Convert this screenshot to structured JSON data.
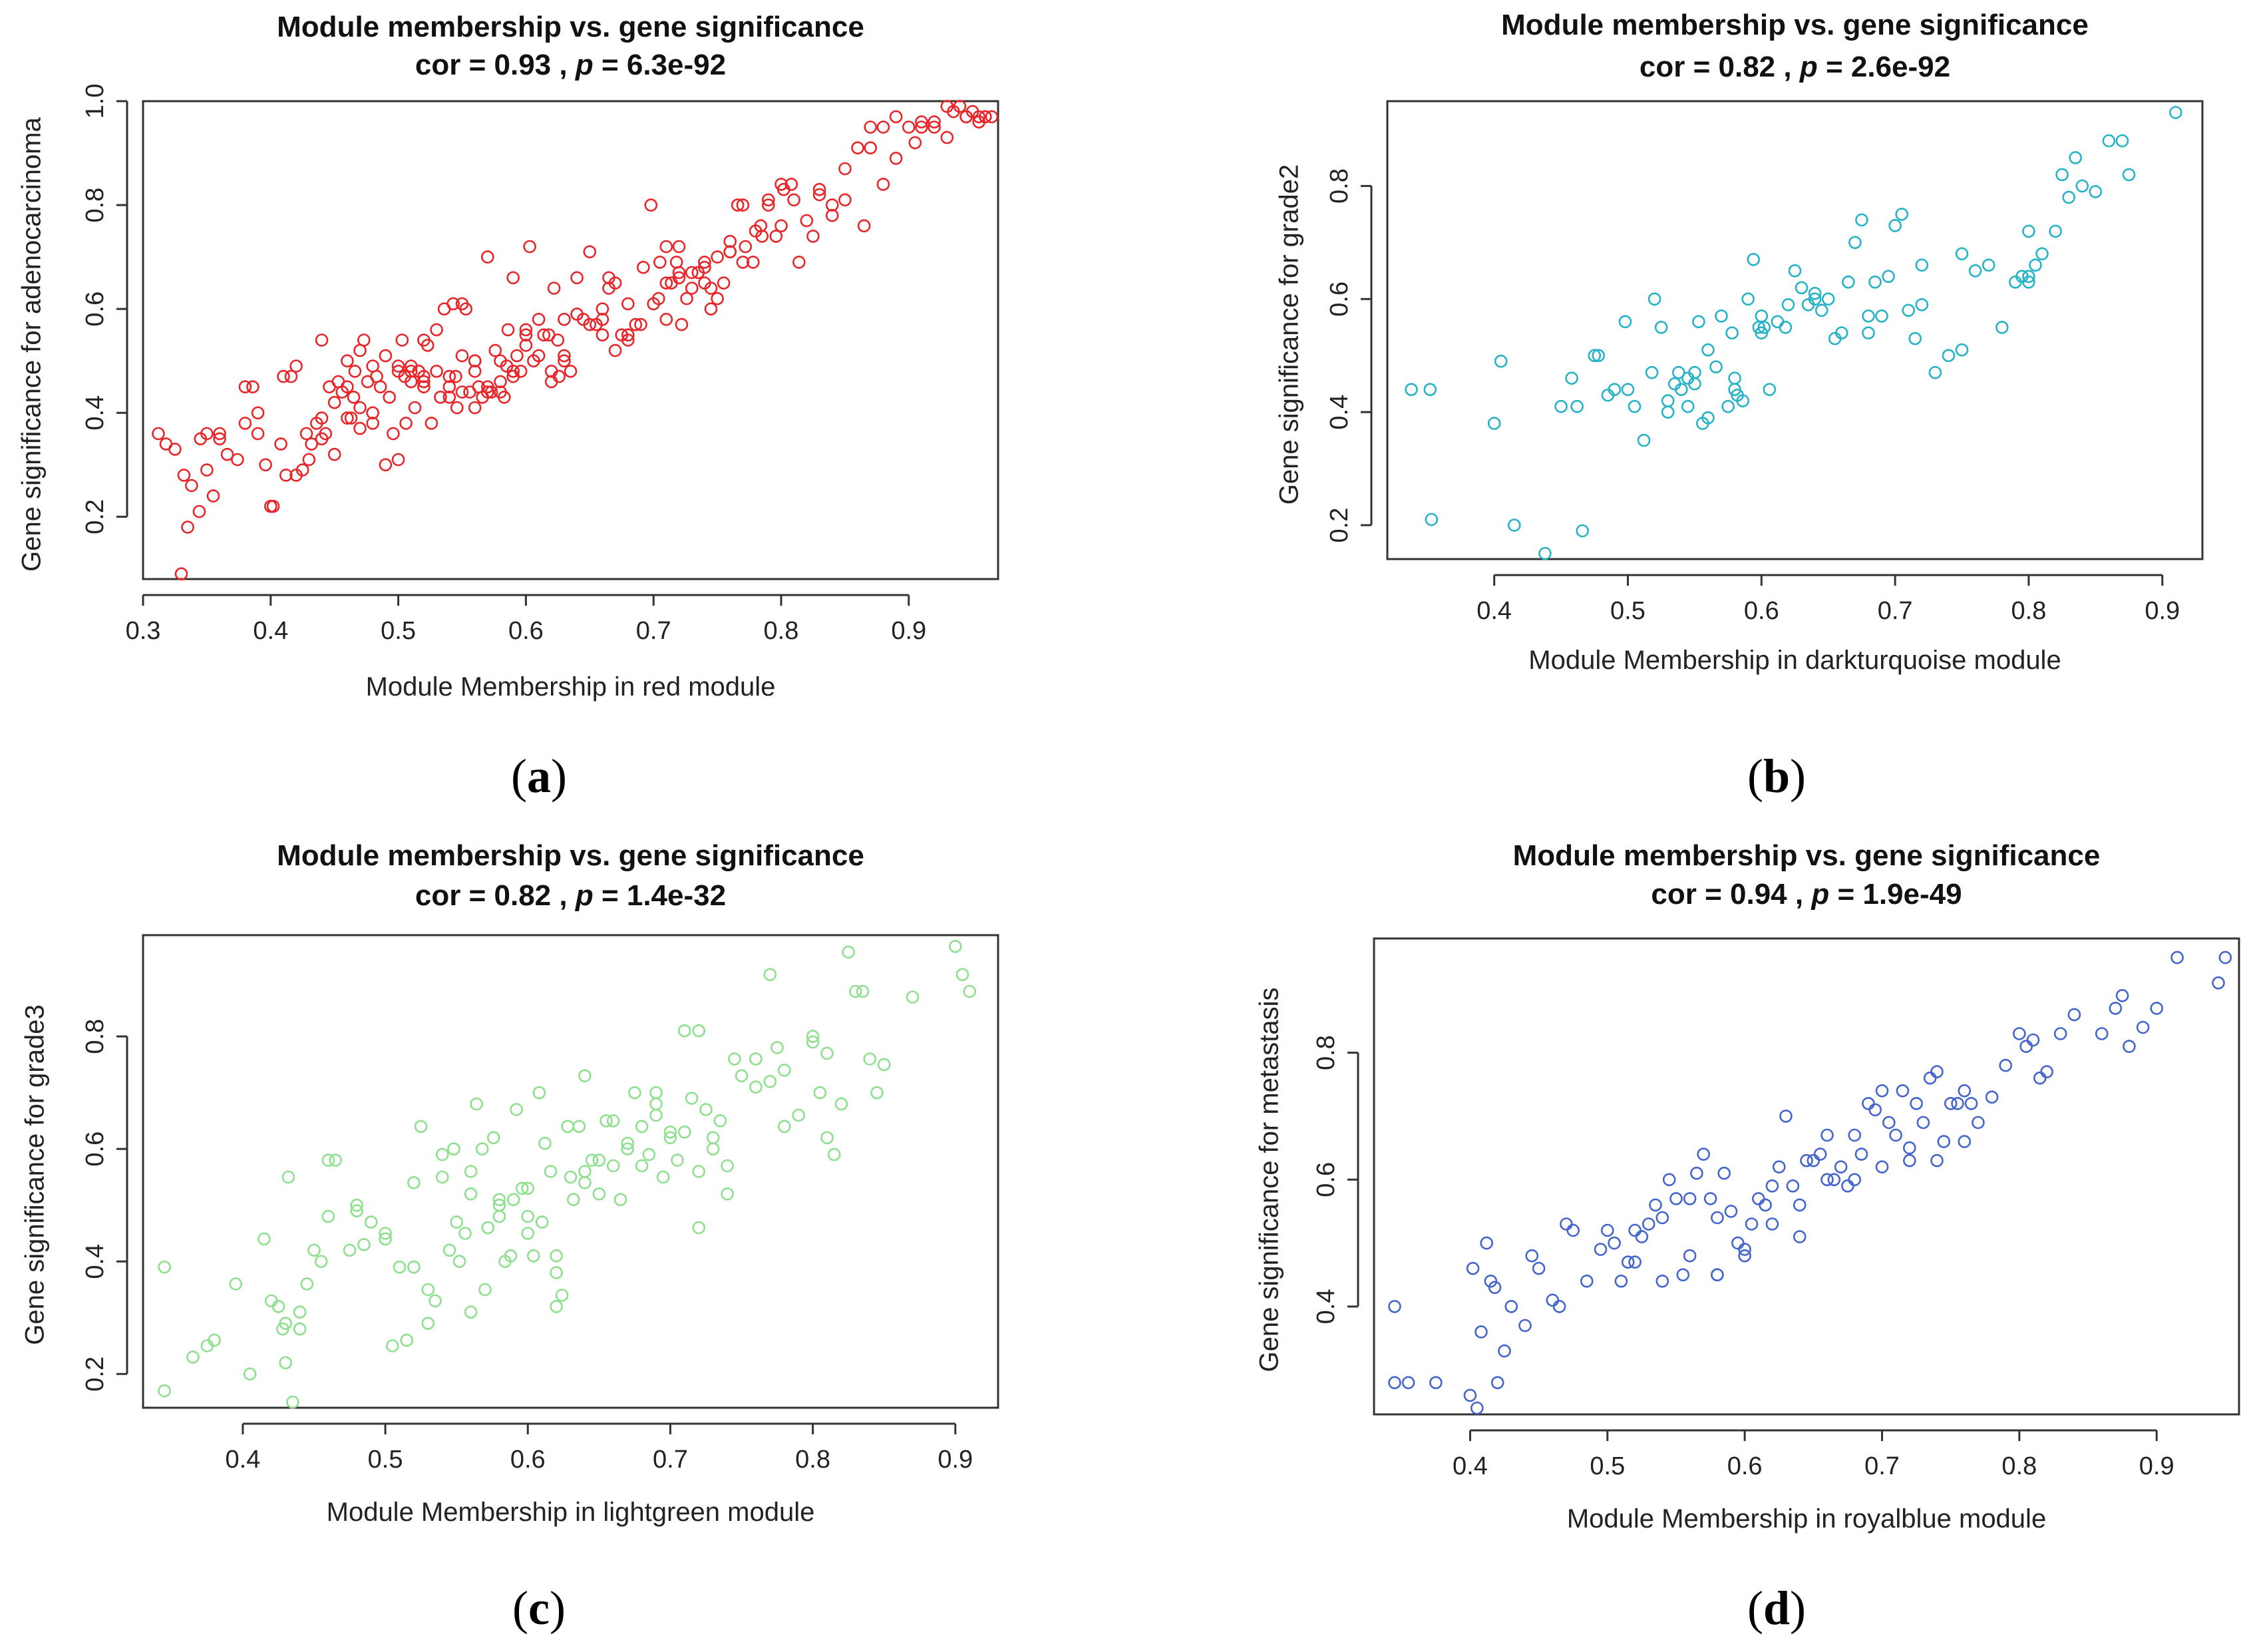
{
  "chart_data": [
    {
      "type": "scatter",
      "title": "Module membership vs. gene significance",
      "subtitle": "cor = 0.93 , p = 6.3e-92",
      "subtitle_parts": {
        "cor": "cor = 0.93 , ",
        "p": "p",
        "rest": " = 6.3e-92"
      },
      "xlabel": "Module Membership in red module",
      "ylabel": "Gene significance for  adenocarcinoma",
      "xlim": [
        0.3,
        0.97
      ],
      "ylim": [
        0.08,
        1.0
      ],
      "xticks": [
        "0.3",
        "0.4",
        "0.5",
        "0.6",
        "0.7",
        "0.8",
        "0.9"
      ],
      "yticks": [
        "0.2",
        "0.4",
        "0.6",
        "0.8",
        "1.0"
      ],
      "color": "#e8262a",
      "panel_label": "(a)",
      "panel_letter": "a",
      "n_points": 240,
      "x": [
        0.312,
        0.318,
        0.325,
        0.332,
        0.335,
        0.338,
        0.344,
        0.35,
        0.355,
        0.36,
        0.366,
        0.374,
        0.38,
        0.386,
        0.39,
        0.396,
        0.402,
        0.408,
        0.412,
        0.416,
        0.42,
        0.425,
        0.428,
        0.432,
        0.436,
        0.44,
        0.443,
        0.446,
        0.45,
        0.453,
        0.456,
        0.46,
        0.463,
        0.466,
        0.47,
        0.473,
        0.476,
        0.48,
        0.483,
        0.486,
        0.49,
        0.493,
        0.496,
        0.5,
        0.503,
        0.506,
        0.51,
        0.513,
        0.516,
        0.52,
        0.523,
        0.526,
        0.53,
        0.533,
        0.536,
        0.54,
        0.543,
        0.546,
        0.55,
        0.553,
        0.556,
        0.56,
        0.563,
        0.566,
        0.57,
        0.573,
        0.576,
        0.58,
        0.583,
        0.586,
        0.59,
        0.593,
        0.596,
        0.6,
        0.603,
        0.606,
        0.61,
        0.614,
        0.618,
        0.622,
        0.626,
        0.63,
        0.635,
        0.64,
        0.645,
        0.65,
        0.655,
        0.66,
        0.665,
        0.67,
        0.675,
        0.68,
        0.686,
        0.692,
        0.698,
        0.704,
        0.71,
        0.714,
        0.718,
        0.722,
        0.726,
        0.73,
        0.735,
        0.74,
        0.745,
        0.75,
        0.755,
        0.76,
        0.766,
        0.772,
        0.778,
        0.784,
        0.79,
        0.796,
        0.802,
        0.808,
        0.814,
        0.82,
        0.83,
        0.84,
        0.85,
        0.86,
        0.87,
        0.88,
        0.89,
        0.9,
        0.91,
        0.92,
        0.93,
        0.935,
        0.94,
        0.945,
        0.95,
        0.955,
        0.96,
        0.965,
        0.33,
        0.345,
        0.36,
        0.38,
        0.4,
        0.42,
        0.44,
        0.46,
        0.48,
        0.5,
        0.52,
        0.54,
        0.56,
        0.58,
        0.6,
        0.62,
        0.64,
        0.66,
        0.68,
        0.7,
        0.72,
        0.74,
        0.76,
        0.78,
        0.8,
        0.43,
        0.47,
        0.51,
        0.55,
        0.59,
        0.63,
        0.67,
        0.71,
        0.75,
        0.79,
        0.83,
        0.87,
        0.91,
        0.45,
        0.49,
        0.53,
        0.57,
        0.61,
        0.65,
        0.69,
        0.73,
        0.77,
        0.81,
        0.85,
        0.89,
        0.93,
        0.465,
        0.505,
        0.545,
        0.585,
        0.625,
        0.665,
        0.705,
        0.745,
        0.785,
        0.825,
        0.865,
        0.905,
        0.945,
        0.955,
        0.44,
        0.48,
        0.52,
        0.56,
        0.6,
        0.64,
        0.68,
        0.72,
        0.76,
        0.8,
        0.84,
        0.88,
        0.92,
        0.96,
        0.35,
        0.39,
        0.41,
        0.57,
        0.58,
        0.56,
        0.59,
        0.62,
        0.71,
        0.72,
        0.5,
        0.51,
        0.52,
        0.46,
        0.47,
        0.55,
        0.54,
        0.63,
        0.66,
        0.74,
        0.77
      ],
      "y": [
        0.36,
        0.34,
        0.33,
        0.28,
        0.18,
        0.26,
        0.21,
        0.36,
        0.24,
        0.36,
        0.32,
        0.31,
        0.38,
        0.45,
        0.4,
        0.3,
        0.22,
        0.34,
        0.28,
        0.47,
        0.49,
        0.29,
        0.36,
        0.34,
        0.38,
        0.54,
        0.36,
        0.45,
        0.42,
        0.46,
        0.44,
        0.5,
        0.39,
        0.48,
        0.41,
        0.54,
        0.46,
        0.38,
        0.47,
        0.45,
        0.51,
        0.43,
        0.36,
        0.49,
        0.54,
        0.38,
        0.46,
        0.41,
        0.48,
        0.45,
        0.53,
        0.38,
        0.56,
        0.43,
        0.6,
        0.45,
        0.61,
        0.41,
        0.51,
        0.6,
        0.44,
        0.5,
        0.45,
        0.43,
        0.7,
        0.44,
        0.52,
        0.5,
        0.43,
        0.56,
        0.66,
        0.51,
        0.48,
        0.55,
        0.72,
        0.5,
        0.58,
        0.55,
        0.55,
        0.64,
        0.47,
        0.5,
        0.48,
        0.66,
        0.58,
        0.71,
        0.57,
        0.55,
        0.66,
        0.52,
        0.55,
        0.55,
        0.57,
        0.68,
        0.8,
        0.62,
        0.72,
        0.65,
        0.69,
        0.57,
        0.62,
        0.67,
        0.67,
        0.69,
        0.6,
        0.62,
        0.65,
        0.73,
        0.8,
        0.72,
        0.69,
        0.76,
        0.8,
        0.74,
        0.83,
        0.84,
        0.69,
        0.77,
        0.82,
        0.78,
        0.87,
        0.91,
        0.95,
        0.95,
        0.97,
        0.95,
        0.96,
        0.96,
        0.99,
        0.98,
        0.99,
        0.97,
        0.98,
        0.97,
        0.97,
        0.97,
        0.09,
        0.35,
        0.35,
        0.45,
        0.22,
        0.28,
        0.35,
        0.45,
        0.49,
        0.31,
        0.54,
        0.43,
        0.41,
        0.44,
        0.56,
        0.46,
        0.59,
        0.6,
        0.54,
        0.61,
        0.72,
        0.65,
        0.71,
        0.75,
        0.84,
        0.31,
        0.52,
        0.49,
        0.61,
        0.48,
        0.58,
        0.65,
        0.58,
        0.7,
        0.81,
        0.83,
        0.91,
        0.95,
        0.32,
        0.3,
        0.48,
        0.44,
        0.51,
        0.57,
        0.57,
        0.64,
        0.69,
        0.81,
        0.81,
        0.89,
        0.93,
        0.43,
        0.47,
        0.47,
        0.49,
        0.54,
        0.64,
        0.69,
        0.64,
        0.74,
        0.74,
        0.76,
        0.92,
        0.97,
        0.96,
        0.39,
        0.4,
        0.46,
        0.5,
        0.53,
        0.59,
        0.61,
        0.67,
        0.71,
        0.76,
        0.8,
        0.84,
        0.95,
        0.97,
        0.29,
        0.36,
        0.47,
        0.45,
        0.46,
        0.48,
        0.47,
        0.48,
        0.65,
        0.66,
        0.48,
        0.48,
        0.47,
        0.39,
        0.37,
        0.44,
        0.47,
        0.51,
        0.58,
        0.68,
        0.8
      ]
    },
    {
      "type": "scatter",
      "title": "Module membership vs. gene significance",
      "subtitle": "cor = 0.82 , p = 2.6e-92",
      "subtitle_parts": {
        "cor": "cor = 0.82 , ",
        "p": "p",
        "rest": " = 2.6e-92"
      },
      "xlabel": "Module Membership in darkturquoise module",
      "ylabel": "Gene significance for  grade2",
      "xlim": [
        0.32,
        0.93
      ],
      "ylim": [
        0.14,
        0.95
      ],
      "xticks": [
        "0.4",
        "0.5",
        "0.6",
        "0.7",
        "0.8",
        "0.9"
      ],
      "yticks": [
        "0.2",
        "0.4",
        "0.6",
        "0.8"
      ],
      "color": "#27b3c7",
      "panel_label": "(b)",
      "panel_letter": "b",
      "n_points": 100,
      "x": [
        0.338,
        0.352,
        0.353,
        0.4,
        0.405,
        0.415,
        0.438,
        0.45,
        0.458,
        0.462,
        0.466,
        0.475,
        0.478,
        0.485,
        0.49,
        0.498,
        0.505,
        0.512,
        0.518,
        0.52,
        0.525,
        0.53,
        0.535,
        0.538,
        0.54,
        0.545,
        0.55,
        0.553,
        0.556,
        0.56,
        0.566,
        0.57,
        0.575,
        0.578,
        0.582,
        0.586,
        0.59,
        0.594,
        0.598,
        0.602,
        0.606,
        0.612,
        0.618,
        0.625,
        0.63,
        0.635,
        0.64,
        0.645,
        0.65,
        0.655,
        0.66,
        0.665,
        0.67,
        0.675,
        0.68,
        0.685,
        0.69,
        0.695,
        0.7,
        0.705,
        0.71,
        0.715,
        0.72,
        0.73,
        0.74,
        0.75,
        0.76,
        0.77,
        0.78,
        0.79,
        0.795,
        0.8,
        0.805,
        0.81,
        0.82,
        0.825,
        0.83,
        0.835,
        0.84,
        0.85,
        0.86,
        0.87,
        0.875,
        0.91,
        0.545,
        0.6,
        0.64,
        0.68,
        0.72,
        0.75,
        0.8,
        0.8,
        0.5,
        0.58,
        0.6,
        0.62,
        0.53,
        0.55,
        0.58,
        0.56
      ],
      "y": [
        0.44,
        0.44,
        0.21,
        0.38,
        0.49,
        0.2,
        0.15,
        0.41,
        0.46,
        0.41,
        0.19,
        0.5,
        0.5,
        0.43,
        0.44,
        0.56,
        0.41,
        0.35,
        0.47,
        0.6,
        0.55,
        0.42,
        0.45,
        0.47,
        0.44,
        0.41,
        0.47,
        0.56,
        0.38,
        0.51,
        0.48,
        0.57,
        0.41,
        0.54,
        0.43,
        0.42,
        0.6,
        0.67,
        0.55,
        0.55,
        0.44,
        0.56,
        0.55,
        0.65,
        0.62,
        0.59,
        0.61,
        0.58,
        0.6,
        0.53,
        0.54,
        0.63,
        0.7,
        0.74,
        0.54,
        0.63,
        0.57,
        0.64,
        0.73,
        0.75,
        0.58,
        0.53,
        0.59,
        0.47,
        0.5,
        0.68,
        0.65,
        0.66,
        0.55,
        0.63,
        0.64,
        0.72,
        0.66,
        0.68,
        0.72,
        0.82,
        0.78,
        0.85,
        0.8,
        0.79,
        0.88,
        0.88,
        0.82,
        0.93,
        0.46,
        0.54,
        0.6,
        0.57,
        0.66,
        0.51,
        0.64,
        0.63,
        0.44,
        0.44,
        0.57,
        0.59,
        0.4,
        0.45,
        0.46,
        0.39
      ]
    },
    {
      "type": "scatter",
      "title": "Module membership vs. gene significance",
      "subtitle": "cor = 0.82 , p = 1.4e-32",
      "subtitle_parts": {
        "cor": "cor = 0.82 , ",
        "p": "p",
        "rest": " = 1.4e-32"
      },
      "xlabel": "Module Membership in lightgreen module",
      "ylabel": "Gene significance for  grade3",
      "xlim": [
        0.33,
        0.93
      ],
      "ylim": [
        0.14,
        0.98
      ],
      "xticks": [
        "0.4",
        "0.5",
        "0.6",
        "0.7",
        "0.8",
        "0.9"
      ],
      "yticks": [
        "0.2",
        "0.4",
        "0.6",
        "0.8"
      ],
      "color": "#8ee08e",
      "panel_label": "(c)",
      "panel_letter": "c",
      "n_points": 140,
      "x": [
        0.345,
        0.345,
        0.365,
        0.375,
        0.38,
        0.395,
        0.405,
        0.415,
        0.42,
        0.425,
        0.428,
        0.43,
        0.432,
        0.435,
        0.44,
        0.445,
        0.45,
        0.455,
        0.46,
        0.465,
        0.475,
        0.48,
        0.485,
        0.49,
        0.5,
        0.505,
        0.51,
        0.515,
        0.52,
        0.525,
        0.53,
        0.535,
        0.54,
        0.545,
        0.548,
        0.552,
        0.556,
        0.56,
        0.564,
        0.568,
        0.572,
        0.576,
        0.58,
        0.584,
        0.588,
        0.592,
        0.596,
        0.6,
        0.604,
        0.608,
        0.612,
        0.616,
        0.62,
        0.624,
        0.628,
        0.632,
        0.636,
        0.64,
        0.645,
        0.65,
        0.655,
        0.66,
        0.665,
        0.67,
        0.675,
        0.68,
        0.685,
        0.69,
        0.695,
        0.7,
        0.705,
        0.71,
        0.715,
        0.72,
        0.725,
        0.73,
        0.735,
        0.74,
        0.745,
        0.75,
        0.76,
        0.77,
        0.775,
        0.78,
        0.79,
        0.8,
        0.805,
        0.81,
        0.815,
        0.82,
        0.825,
        0.83,
        0.835,
        0.84,
        0.845,
        0.85,
        0.87,
        0.9,
        0.905,
        0.91,
        0.43,
        0.46,
        0.5,
        0.54,
        0.58,
        0.62,
        0.66,
        0.7,
        0.74,
        0.78,
        0.52,
        0.56,
        0.6,
        0.64,
        0.68,
        0.72,
        0.76,
        0.8,
        0.44,
        0.48,
        0.53,
        0.57,
        0.61,
        0.65,
        0.69,
        0.73,
        0.77,
        0.81,
        0.55,
        0.59,
        0.63,
        0.67,
        0.71,
        0.56,
        0.6,
        0.64,
        0.62,
        0.58,
        0.69,
        0.72
      ],
      "y": [
        0.17,
        0.39,
        0.23,
        0.25,
        0.26,
        0.36,
        0.2,
        0.44,
        0.33,
        0.32,
        0.28,
        0.22,
        0.55,
        0.15,
        0.31,
        0.36,
        0.42,
        0.4,
        0.48,
        0.58,
        0.42,
        0.5,
        0.43,
        0.47,
        0.45,
        0.25,
        0.39,
        0.26,
        0.54,
        0.64,
        0.29,
        0.33,
        0.55,
        0.42,
        0.6,
        0.4,
        0.45,
        0.31,
        0.68,
        0.6,
        0.46,
        0.62,
        0.5,
        0.4,
        0.41,
        0.67,
        0.53,
        0.48,
        0.41,
        0.7,
        0.61,
        0.56,
        0.41,
        0.34,
        0.64,
        0.51,
        0.64,
        0.73,
        0.58,
        0.52,
        0.65,
        0.57,
        0.51,
        0.61,
        0.7,
        0.57,
        0.59,
        0.7,
        0.55,
        0.62,
        0.58,
        0.63,
        0.69,
        0.46,
        0.67,
        0.62,
        0.65,
        0.52,
        0.76,
        0.73,
        0.71,
        0.91,
        0.78,
        0.64,
        0.66,
        0.8,
        0.7,
        0.62,
        0.59,
        0.68,
        0.95,
        0.88,
        0.88,
        0.76,
        0.7,
        0.75,
        0.87,
        0.96,
        0.91,
        0.88,
        0.29,
        0.58,
        0.44,
        0.59,
        0.51,
        0.38,
        0.65,
        0.63,
        0.57,
        0.74,
        0.39,
        0.52,
        0.53,
        0.54,
        0.64,
        0.81,
        0.76,
        0.79,
        0.28,
        0.49,
        0.35,
        0.35,
        0.47,
        0.58,
        0.66,
        0.6,
        0.72,
        0.77,
        0.47,
        0.51,
        0.55,
        0.6,
        0.81,
        0.56,
        0.45,
        0.56,
        0.32,
        0.48,
        0.68,
        0.56
      ]
    },
    {
      "type": "scatter",
      "title": "Module membership vs. gene significance",
      "subtitle": "cor = 0.94 , p = 1.9e-49",
      "subtitle_parts": {
        "cor": "cor = 0.94 , ",
        "p": "p",
        "rest": " = 1.9e-49"
      },
      "xlabel": "Module Membership in royalblue module",
      "ylabel": "Gene significance for  metastasis",
      "xlim": [
        0.33,
        0.96
      ],
      "ylim": [
        0.23,
        0.98
      ],
      "xticks": [
        "0.4",
        "0.5",
        "0.6",
        "0.7",
        "0.8",
        "0.9"
      ],
      "yticks": [
        "0.4",
        "0.6",
        "0.8"
      ],
      "color": "#4466cc",
      "panel_label": "(d)",
      "panel_letter": "d",
      "n_points": 110,
      "x": [
        0.345,
        0.345,
        0.355,
        0.375,
        0.4,
        0.402,
        0.405,
        0.408,
        0.412,
        0.415,
        0.418,
        0.42,
        0.425,
        0.43,
        0.44,
        0.445,
        0.45,
        0.46,
        0.465,
        0.47,
        0.475,
        0.485,
        0.495,
        0.5,
        0.505,
        0.51,
        0.515,
        0.52,
        0.525,
        0.53,
        0.535,
        0.54,
        0.545,
        0.55,
        0.555,
        0.56,
        0.565,
        0.57,
        0.575,
        0.58,
        0.585,
        0.59,
        0.595,
        0.6,
        0.605,
        0.61,
        0.615,
        0.62,
        0.625,
        0.63,
        0.635,
        0.64,
        0.645,
        0.65,
        0.655,
        0.66,
        0.665,
        0.67,
        0.675,
        0.68,
        0.685,
        0.69,
        0.695,
        0.7,
        0.705,
        0.71,
        0.715,
        0.72,
        0.725,
        0.73,
        0.735,
        0.74,
        0.745,
        0.75,
        0.755,
        0.76,
        0.765,
        0.77,
        0.78,
        0.79,
        0.8,
        0.805,
        0.81,
        0.815,
        0.82,
        0.83,
        0.84,
        0.86,
        0.87,
        0.875,
        0.88,
        0.89,
        0.9,
        0.915,
        0.945,
        0.95,
        0.56,
        0.58,
        0.6,
        0.62,
        0.64,
        0.66,
        0.68,
        0.7,
        0.72,
        0.74,
        0.76,
        0.54,
        0.52,
        0.58
      ],
      "y": [
        0.28,
        0.4,
        0.28,
        0.28,
        0.26,
        0.46,
        0.24,
        0.36,
        0.5,
        0.44,
        0.43,
        0.28,
        0.33,
        0.4,
        0.37,
        0.48,
        0.46,
        0.41,
        0.4,
        0.53,
        0.52,
        0.44,
        0.49,
        0.52,
        0.5,
        0.44,
        0.47,
        0.52,
        0.51,
        0.53,
        0.56,
        0.54,
        0.6,
        0.57,
        0.45,
        0.57,
        0.61,
        0.64,
        0.57,
        0.54,
        0.61,
        0.55,
        0.5,
        0.48,
        0.53,
        0.57,
        0.56,
        0.59,
        0.62,
        0.7,
        0.59,
        0.51,
        0.63,
        0.63,
        0.64,
        0.67,
        0.6,
        0.62,
        0.59,
        0.67,
        0.64,
        0.72,
        0.71,
        0.74,
        0.69,
        0.67,
        0.74,
        0.63,
        0.72,
        0.69,
        0.76,
        0.77,
        0.66,
        0.72,
        0.72,
        0.74,
        0.72,
        0.69,
        0.73,
        0.78,
        0.83,
        0.81,
        0.82,
        0.76,
        0.77,
        0.83,
        0.86,
        0.83,
        0.87,
        0.89,
        0.81,
        0.84,
        0.87,
        0.95,
        0.91,
        0.95,
        0.48,
        0.45,
        0.49,
        0.53,
        0.56,
        0.6,
        0.6,
        0.62,
        0.65,
        0.63,
        0.66,
        0.44,
        0.47,
        0.45
      ]
    }
  ]
}
